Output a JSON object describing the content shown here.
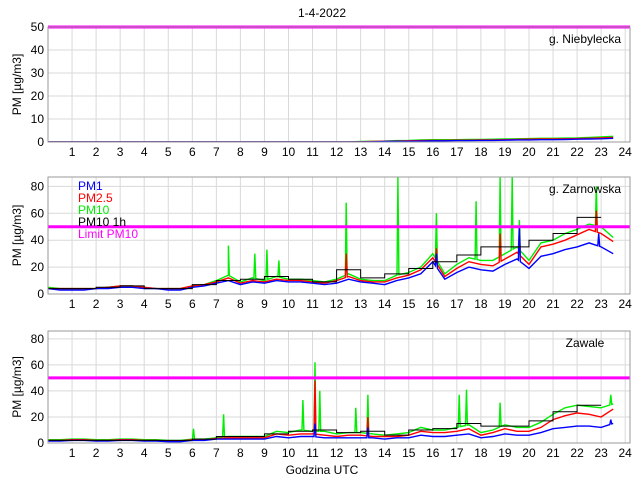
{
  "title": "1-4-2022",
  "xlabel": "Godzina UTC",
  "ylabel": "PM [µg/m3]",
  "colors": {
    "PM1": "#0000ff",
    "PM2.5": "#ff0000",
    "PM10": "#00ee00",
    "PM10 1h": "#000000",
    "Limit PM10": "#ff00ff",
    "grid": "#d9d9d9"
  },
  "legend": [
    "PM1",
    "PM2.5",
    "PM10",
    "PM10 1h",
    "Limit PM10"
  ],
  "chart_data": [
    {
      "type": "line",
      "station": "g. Niebylecka",
      "xlim": [
        0,
        24.2
      ],
      "ylim": [
        0,
        50
      ],
      "xticks": [
        1,
        2,
        3,
        4,
        5,
        6,
        7,
        8,
        9,
        10,
        11,
        12,
        13,
        14,
        15,
        16,
        17,
        18,
        19,
        20,
        21,
        22,
        23,
        24
      ],
      "yticks": [
        0,
        10,
        20,
        30,
        40,
        50
      ],
      "limit": 50,
      "x_step_hours": 0.5,
      "series": [
        {
          "name": "PM10",
          "values": [
            0,
            0,
            0,
            0,
            0,
            0,
            0,
            0,
            0,
            0,
            0,
            0,
            0,
            0,
            0,
            0,
            0,
            0,
            0,
            0,
            0,
            0,
            0,
            0,
            0,
            0,
            0.2,
            0.3,
            0.4,
            0.6,
            0.7,
            0.9,
            1,
            1,
            1,
            1.1,
            1.1,
            1.2,
            1.3,
            1.4,
            1.5,
            1.6,
            1.6,
            1.7,
            1.8,
            2,
            2.2,
            2.5
          ],
          "peaks": []
        },
        {
          "name": "PM2.5",
          "values": [
            0,
            0,
            0,
            0,
            0,
            0,
            0,
            0,
            0,
            0,
            0,
            0,
            0,
            0,
            0,
            0,
            0,
            0,
            0,
            0,
            0,
            0,
            0,
            0,
            0,
            0,
            0.1,
            0.2,
            0.3,
            0.4,
            0.5,
            0.6,
            0.7,
            0.7,
            0.8,
            0.8,
            0.9,
            0.9,
            1,
            1.1,
            1.2,
            1.3,
            1.3,
            1.4,
            1.5,
            1.6,
            1.8,
            2
          ],
          "peaks": []
        },
        {
          "name": "PM1",
          "values": [
            0,
            0,
            0,
            0,
            0,
            0,
            0,
            0,
            0,
            0,
            0,
            0,
            0,
            0,
            0,
            0,
            0,
            0,
            0,
            0,
            0,
            0,
            0,
            0,
            0,
            0,
            0,
            0.1,
            0.2,
            0.3,
            0.3,
            0.4,
            0.5,
            0.5,
            0.6,
            0.6,
            0.7,
            0.7,
            0.8,
            0.9,
            0.9,
            1,
            1,
            1.1,
            1.2,
            1.3,
            1.4,
            1.6
          ],
          "peaks": []
        }
      ],
      "hourly_pm10": []
    },
    {
      "type": "line",
      "station": "g. Zarnowska",
      "xlim": [
        0,
        24.2
      ],
      "ylim": [
        0,
        87
      ],
      "xticks": [
        1,
        2,
        3,
        4,
        5,
        6,
        7,
        8,
        9,
        10,
        11,
        12,
        13,
        14,
        15,
        16,
        17,
        18,
        19,
        20,
        21,
        22,
        23,
        24
      ],
      "yticks": [
        0,
        20,
        40,
        60,
        80
      ],
      "limit": 50,
      "x_step_hours": 0.5,
      "series": [
        {
          "name": "PM10",
          "values": [
            5,
            4,
            4,
            4,
            4,
            5,
            6,
            6,
            5,
            4,
            4,
            4,
            6,
            7,
            10,
            14,
            9,
            12,
            10,
            13,
            11,
            11,
            10,
            9,
            11,
            15,
            11,
            10,
            10,
            14,
            16,
            20,
            30,
            15,
            22,
            27,
            25,
            25,
            30,
            35,
            25,
            38,
            40,
            45,
            48,
            52,
            50,
            42
          ],
          "peaks": [
            [
              7.5,
              36
            ],
            [
              8.6,
              30
            ],
            [
              9.1,
              33
            ],
            [
              9.6,
              25
            ],
            [
              12.4,
              68
            ],
            [
              14.55,
              87
            ],
            [
              16.15,
              60
            ],
            [
              17.8,
              69
            ],
            [
              18.8,
              87
            ],
            [
              19.3,
              87
            ],
            [
              19.6,
              55
            ],
            [
              22.8,
              80
            ]
          ]
        },
        {
          "name": "PM2.5",
          "values": [
            4,
            4,
            4,
            4,
            4,
            5,
            6,
            6,
            5,
            4,
            4,
            4,
            6,
            7,
            9,
            12,
            8,
            10,
            9,
            11,
            10,
            10,
            9,
            8,
            10,
            13,
            10,
            9,
            9,
            12,
            14,
            18,
            27,
            13,
            19,
            24,
            22,
            21,
            26,
            31,
            22,
            35,
            37,
            40,
            44,
            48,
            45,
            39
          ],
          "peaks": [
            [
              12.4,
              30
            ],
            [
              16.15,
              34
            ],
            [
              18.8,
              45
            ],
            [
              19.6,
              48
            ],
            [
              22.8,
              62
            ]
          ]
        },
        {
          "name": "PM1",
          "values": [
            4,
            3,
            3,
            3,
            4,
            4,
            5,
            5,
            4,
            4,
            3,
            3,
            5,
            6,
            8,
            10,
            7,
            9,
            8,
            10,
            9,
            9,
            8,
            7,
            8,
            11,
            9,
            8,
            7,
            10,
            12,
            15,
            24,
            11,
            16,
            20,
            18,
            17,
            22,
            26,
            19,
            28,
            30,
            33,
            35,
            38,
            35,
            30
          ],
          "peaks": [
            [
              16.15,
              30
            ],
            [
              19.6,
              50
            ],
            [
              22.9,
              45
            ]
          ]
        }
      ],
      "hourly_pm10": [
        4,
        4,
        5,
        6,
        4,
        4,
        7,
        10,
        11,
        13,
        11,
        9,
        18,
        12,
        15,
        19,
        24,
        29,
        35,
        35,
        40,
        45,
        57
      ]
    },
    {
      "type": "line",
      "station": "Zawale",
      "xlim": [
        0,
        24.2
      ],
      "ylim": [
        0,
        86
      ],
      "xticks": [
        1,
        2,
        3,
        4,
        5,
        6,
        7,
        8,
        9,
        10,
        11,
        12,
        13,
        14,
        15,
        16,
        17,
        18,
        19,
        20,
        21,
        22,
        23,
        24
      ],
      "yticks": [
        0,
        20,
        40,
        60,
        80
      ],
      "limit": 50,
      "x_step_hours": 0.5,
      "series": [
        {
          "name": "PM10",
          "values": [
            2.5,
            2.5,
            3,
            3,
            2.5,
            2.5,
            3,
            3,
            2.5,
            2.5,
            2,
            2,
            3,
            3,
            4,
            5,
            5,
            5,
            5,
            9,
            8,
            10,
            9,
            9,
            7,
            8,
            8,
            7,
            6,
            7,
            8,
            12,
            10,
            10,
            12,
            14,
            8,
            10,
            14,
            12,
            12,
            16,
            22,
            27,
            29,
            28,
            27,
            30
          ],
          "peaks": [
            [
              6.05,
              11
            ],
            [
              7.3,
              22
            ],
            [
              10.6,
              33
            ],
            [
              11.1,
              62
            ],
            [
              11.3,
              40
            ],
            [
              12.8,
              27
            ],
            [
              13.3,
              37
            ],
            [
              17.1,
              37
            ],
            [
              17.4,
              41
            ],
            [
              18.8,
              31
            ],
            [
              23.4,
              37
            ]
          ]
        },
        {
          "name": "PM2.5",
          "values": [
            2,
            2,
            2.5,
            2.5,
            2,
            2,
            2.5,
            2.5,
            2,
            2,
            1.5,
            1.5,
            2.5,
            2.5,
            3.5,
            4,
            4,
            4,
            4,
            7,
            6,
            7,
            7,
            6,
            5,
            6,
            6,
            5,
            5,
            5,
            6,
            9,
            8,
            8,
            9,
            11,
            6,
            8,
            11,
            9,
            9,
            12,
            18,
            21,
            23,
            22,
            20,
            26
          ],
          "peaks": [
            [
              11.1,
              48
            ],
            [
              13.3,
              20
            ]
          ]
        },
        {
          "name": "PM1",
          "values": [
            1.5,
            1.5,
            2,
            2,
            1.5,
            1.5,
            2,
            2,
            1.5,
            1.5,
            1,
            1,
            2,
            2,
            3,
            3,
            3,
            3,
            3,
            5,
            4,
            5,
            5,
            4,
            4,
            4,
            4,
            4,
            3,
            4,
            4,
            6,
            5,
            5,
            6,
            7,
            4,
            5,
            7,
            6,
            6,
            8,
            11,
            12,
            13,
            13,
            12,
            15
          ],
          "peaks": [
            [
              11.1,
              15
            ],
            [
              13.3,
              12
            ],
            [
              23.4,
              18
            ]
          ]
        }
      ],
      "hourly_pm10": [
        2,
        2,
        2,
        2,
        2,
        2,
        3,
        5,
        5,
        7,
        9,
        10,
        8,
        9,
        6,
        10,
        11,
        15,
        13,
        13,
        17,
        24,
        29
      ]
    }
  ]
}
